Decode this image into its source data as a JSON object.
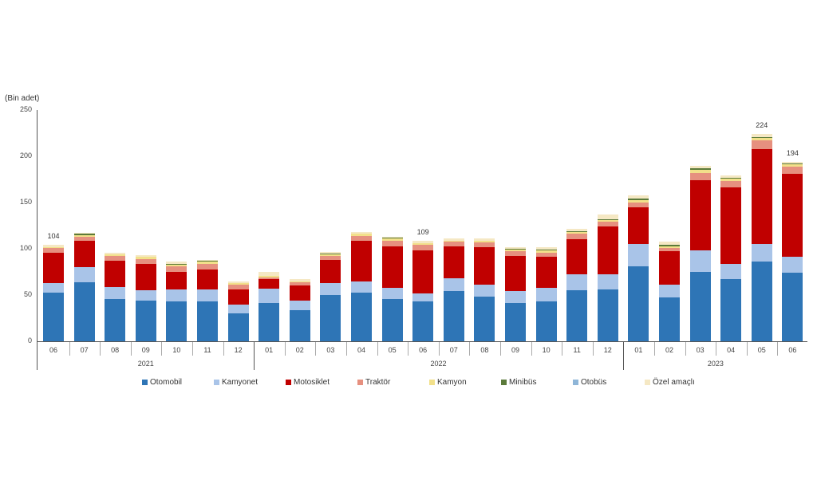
{
  "chart_data": {
    "type": "bar",
    "stacked": true,
    "title": "",
    "ylabel": "(Bin adet)",
    "xlabel": "",
    "ylim": [
      0,
      250
    ],
    "yticks": [
      0,
      50,
      100,
      150,
      200,
      250
    ],
    "grid": false,
    "legend_position": "bottom",
    "categories": [
      "06",
      "07",
      "08",
      "09",
      "10",
      "11",
      "12",
      "01",
      "02",
      "03",
      "04",
      "05",
      "06",
      "07",
      "08",
      "09",
      "10",
      "11",
      "12",
      "01",
      "02",
      "03",
      "04",
      "05",
      "06"
    ],
    "years": [
      {
        "label": "2021",
        "start": 0,
        "end": 6
      },
      {
        "label": "2022",
        "start": 7,
        "end": 18
      },
      {
        "label": "2023",
        "start": 19,
        "end": 24
      }
    ],
    "series": [
      {
        "name": "Otomobil",
        "color": "#2e75b6",
        "values": [
          53,
          64,
          46,
          44,
          43,
          43,
          30,
          41,
          34,
          50,
          53,
          46,
          43,
          54,
          48,
          41,
          43,
          55,
          56,
          81,
          47,
          75,
          67,
          86,
          74
        ]
      },
      {
        "name": "Kamyonet",
        "color": "#a9c4e8",
        "values": [
          10,
          16,
          13,
          11,
          13,
          13,
          10,
          16,
          10,
          13,
          12,
          12,
          9,
          14,
          13,
          13,
          15,
          17,
          16,
          24,
          14,
          23,
          17,
          19,
          17
        ]
      },
      {
        "name": "Motosiklet",
        "color": "#c00000",
        "values": [
          33,
          29,
          28,
          29,
          19,
          22,
          16,
          10,
          16,
          25,
          44,
          45,
          46,
          35,
          41,
          38,
          33,
          38,
          52,
          40,
          36,
          76,
          82,
          103,
          90
        ]
      },
      {
        "name": "Traktör",
        "color": "#e6907f",
        "values": [
          5,
          4,
          5,
          5,
          6,
          6,
          5,
          2,
          4,
          4,
          5,
          6,
          6,
          5,
          5,
          5,
          5,
          6,
          5,
          5,
          4,
          8,
          7,
          9,
          8
        ]
      },
      {
        "name": "Kamyon",
        "color": "#f2e08a",
        "values": [
          1,
          2,
          2,
          2,
          2,
          2,
          2,
          2,
          1,
          2,
          2,
          2,
          2,
          1,
          2,
          2,
          2,
          2,
          2,
          3,
          2,
          3,
          3,
          3,
          2
        ]
      },
      {
        "name": "Minibüs",
        "color": "#5b7a3a",
        "values": [
          0,
          1,
          0,
          0,
          1,
          1,
          0,
          0,
          0,
          1,
          0,
          1,
          0,
          0,
          0,
          1,
          1,
          1,
          1,
          1,
          1,
          2,
          1,
          1,
          1
        ]
      },
      {
        "name": "Otobüs",
        "color": "#8fb6d8",
        "values": [
          0,
          0,
          0,
          0,
          0,
          0,
          0,
          0,
          0,
          0,
          0,
          0,
          0,
          0,
          0,
          0,
          0,
          0,
          0,
          0,
          0,
          0,
          0,
          0,
          0
        ]
      },
      {
        "name": "Özel amaçlı",
        "color": "#f5e8c4",
        "values": [
          2,
          1,
          2,
          2,
          2,
          1,
          2,
          4,
          2,
          2,
          2,
          1,
          3,
          2,
          2,
          2,
          3,
          3,
          5,
          4,
          4,
          3,
          2,
          3,
          2
        ]
      }
    ],
    "annotations": [
      {
        "index": 0,
        "text": "104"
      },
      {
        "index": 12,
        "text": "109"
      },
      {
        "index": 23,
        "text": "224"
      },
      {
        "index": 24,
        "text": "194"
      }
    ]
  }
}
